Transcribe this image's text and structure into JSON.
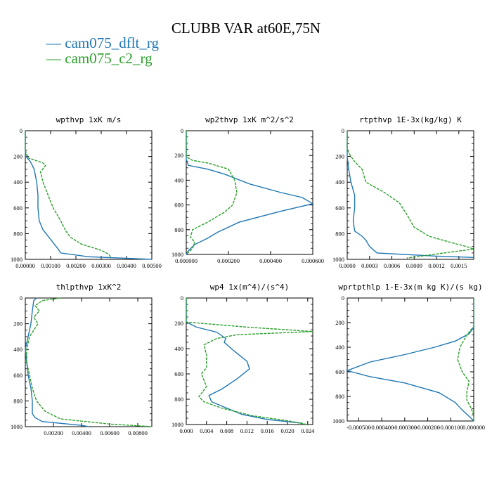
{
  "title": "CLUBB VAR at60E,75N",
  "legend": [
    {
      "label": "cam075_dflt_rg",
      "color": "#1f77b4",
      "dash": false
    },
    {
      "label": "cam075_c2_rg",
      "color": "#2ca02c",
      "dash": true
    }
  ],
  "chart_data": [
    {
      "type": "line",
      "title": "wpthvp  1xK m/s",
      "xlim": [
        0,
        0.005
      ],
      "ylim": [
        1000,
        0
      ],
      "xticks": [
        0,
        0.001,
        0.002,
        0.003,
        0.004,
        0.005
      ],
      "xticklabels": [
        "0.00000",
        "0.00100",
        "0.00200",
        "0.00300",
        "0.00400",
        "0.00500"
      ],
      "yticks": [
        0,
        200,
        400,
        600,
        800,
        1000
      ],
      "yticklabels": [
        "0",
        "200",
        "400",
        "600",
        "800",
        "1000"
      ],
      "series": [
        {
          "name": "cam075_dflt_rg",
          "points": [
            [
              0,
              0
            ],
            [
              0,
              150
            ],
            [
              2e-05,
              200
            ],
            [
              0.0002,
              240
            ],
            [
              0.00035,
              300
            ],
            [
              0.00045,
              400
            ],
            [
              0.0005,
              500
            ],
            [
              0.0005,
              600
            ],
            [
              0.00055,
              700
            ],
            [
              0.0007,
              770
            ],
            [
              0.0009,
              820
            ],
            [
              0.0011,
              870
            ],
            [
              0.0013,
              920
            ],
            [
              0.0014,
              950
            ],
            [
              0.0025,
              980
            ],
            [
              0.005,
              1000
            ]
          ]
        },
        {
          "name": "cam075_c2_rg",
          "points": [
            [
              0,
              0
            ],
            [
              0,
              150
            ],
            [
              0.0001,
              210
            ],
            [
              0.0007,
              250
            ],
            [
              0.0008,
              270
            ],
            [
              0.0006,
              320
            ],
            [
              0.0007,
              400
            ],
            [
              0.0009,
              500
            ],
            [
              0.0011,
              600
            ],
            [
              0.0014,
              700
            ],
            [
              0.0016,
              780
            ],
            [
              0.0018,
              830
            ],
            [
              0.0022,
              880
            ],
            [
              0.003,
              930
            ],
            [
              0.0033,
              960
            ],
            [
              0.0034,
              990
            ]
          ]
        }
      ]
    },
    {
      "type": "line",
      "title": "wp2thvp  1xK m^2/s^2",
      "xlim": [
        0,
        0.0006
      ],
      "ylim": [
        1000,
        0
      ],
      "xticks": [
        0,
        0.0002,
        0.0004,
        0.0006
      ],
      "xticklabels": [
        "0.000000",
        "0.000200",
        "0.000400",
        "0.000600"
      ],
      "yticks": [
        0,
        200,
        400,
        600,
        800,
        1000
      ],
      "yticklabels": [
        "0",
        "200",
        "400",
        "600",
        "800",
        "1000"
      ],
      "series": [
        {
          "name": "cam075_dflt_rg",
          "points": [
            [
              0,
              0
            ],
            [
              0,
              230
            ],
            [
              1e-05,
              280
            ],
            [
              0.0001,
              310
            ],
            [
              0.00018,
              350
            ],
            [
              0.0003,
              430
            ],
            [
              0.00045,
              500
            ],
            [
              0.00055,
              540
            ],
            [
              0.0006,
              590
            ],
            [
              0.00045,
              650
            ],
            [
              0.00025,
              740
            ],
            [
              0.00015,
              820
            ],
            [
              0.0001,
              870
            ],
            [
              4e-05,
              920
            ],
            [
              1e-05,
              970
            ],
            [
              0,
              1000
            ]
          ]
        },
        {
          "name": "cam075_c2_rg",
          "points": [
            [
              0,
              0
            ],
            [
              0,
              210
            ],
            [
              3e-05,
              240
            ],
            [
              0.0001,
              260
            ],
            [
              0.0002,
              310
            ],
            [
              0.00023,
              400
            ],
            [
              0.00024,
              500
            ],
            [
              0.00022,
              600
            ],
            [
              0.00018,
              660
            ],
            [
              0.0001,
              740
            ],
            [
              3e-05,
              800
            ],
            [
              2e-05,
              860
            ],
            [
              4e-05,
              900
            ],
            [
              3e-05,
              950
            ],
            [
              0,
              1000
            ]
          ]
        }
      ]
    },
    {
      "type": "line",
      "title": "rtpthvp  1E-3x(kg/kg) K",
      "xlim": [
        0,
        0.0017
      ],
      "ylim": [
        1000,
        0
      ],
      "xticks": [
        0,
        0.0003,
        0.0006,
        0.0009,
        0.0012,
        0.0015
      ],
      "xticklabels": [
        "0.0000",
        "0.0003",
        "0.0006",
        "0.0009",
        "0.0012",
        "0.0015"
      ],
      "yticks": [
        0,
        200,
        400,
        600,
        800,
        1000
      ],
      "yticklabels": [
        "0",
        "200",
        "400",
        "600",
        "800",
        "1000"
      ],
      "series": [
        {
          "name": "cam075_dflt_rg",
          "points": [
            [
              0,
              0
            ],
            [
              0,
              200
            ],
            [
              2e-05,
              300
            ],
            [
              5e-05,
              400
            ],
            [
              0.0001,
              500
            ],
            [
              0.0001,
              600
            ],
            [
              8e-05,
              700
            ],
            [
              0.0001,
              780
            ],
            [
              0.0002,
              820
            ],
            [
              0.00025,
              850
            ],
            [
              0.0003,
              900
            ],
            [
              0.0004,
              950
            ],
            [
              0.0012,
              975
            ],
            [
              0.0017,
              985
            ]
          ]
        },
        {
          "name": "cam075_c2_rg",
          "points": [
            [
              0,
              0
            ],
            [
              0,
              150
            ],
            [
              5e-05,
              200
            ],
            [
              0.0001,
              240
            ],
            [
              0.0002,
              300
            ],
            [
              0.00025,
              400
            ],
            [
              0.0005,
              480
            ],
            [
              0.0007,
              560
            ],
            [
              0.0008,
              650
            ],
            [
              0.0009,
              750
            ],
            [
              0.0011,
              820
            ],
            [
              0.0014,
              870
            ],
            [
              0.0016,
              900
            ],
            [
              0.0017,
              920
            ],
            [
              0.0013,
              950
            ],
            [
              0.0008,
              990
            ]
          ]
        }
      ]
    },
    {
      "type": "line",
      "title": "thlpthvp  1xK^2",
      "xlim": [
        0,
        0.009
      ],
      "ylim": [
        1000,
        0
      ],
      "xticks": [
        0.002,
        0.004,
        0.006,
        0.008
      ],
      "xticklabels": [
        "0.00200",
        "0.00400",
        "0.00600",
        "0.00800"
      ],
      "yticks": [
        0,
        200,
        400,
        600,
        800,
        1000
      ],
      "yticklabels": [
        "0",
        "200",
        "400",
        "600",
        "800",
        "1000"
      ],
      "series": [
        {
          "name": "cam075_dflt_rg",
          "points": [
            [
              0.0008,
              0
            ],
            [
              0.0006,
              20
            ],
            [
              0.0005,
              100
            ],
            [
              0.0004,
              200
            ],
            [
              0.0002,
              300
            ],
            [
              0,
              400
            ],
            [
              0.0001,
              500
            ],
            [
              0.0002,
              600
            ],
            [
              0.0004,
              700
            ],
            [
              0.0005,
              800
            ],
            [
              0.0005,
              900
            ],
            [
              0.0007,
              930
            ],
            [
              0.0012,
              960
            ],
            [
              0.004,
              990
            ],
            [
              0.0045,
              1000
            ]
          ]
        },
        {
          "name": "cam075_c2_rg",
          "points": [
            [
              0.0025,
              0
            ],
            [
              0.0012,
              20
            ],
            [
              0.0007,
              60
            ],
            [
              0.001,
              100
            ],
            [
              0.0006,
              150
            ],
            [
              0.0009,
              200
            ],
            [
              0.0006,
              250
            ],
            [
              0.0003,
              300
            ],
            [
              0.0001,
              400
            ],
            [
              0.0001,
              500
            ],
            [
              0.0003,
              600
            ],
            [
              0.0005,
              700
            ],
            [
              0.0008,
              800
            ],
            [
              0.0014,
              880
            ],
            [
              0.0025,
              940
            ],
            [
              0.006,
              980
            ],
            [
              0.009,
              1000
            ]
          ]
        }
      ]
    },
    {
      "type": "line",
      "title": "wp4  1x(m^4)/(s^4)",
      "xlim": [
        0,
        0.025
      ],
      "ylim": [
        1000,
        0
      ],
      "xticks": [
        0,
        0.004,
        0.008,
        0.012,
        0.016,
        0.02,
        0.024
      ],
      "xticklabels": [
        "0.000",
        "0.004",
        "0.008",
        "0.012",
        "0.016",
        "0.020",
        "0.024"
      ],
      "yticks": [
        0,
        200,
        400,
        600,
        800,
        1000
      ],
      "yticklabels": [
        "0",
        "200",
        "400",
        "600",
        "800",
        "1000"
      ],
      "series": [
        {
          "name": "cam075_dflt_rg",
          "points": [
            [
              0,
              0
            ],
            [
              0,
              190
            ],
            [
              0.002,
              230
            ],
            [
              0.006,
              270
            ],
            [
              0.0078,
              320
            ],
            [
              0.0075,
              350
            ],
            [
              0.0095,
              420
            ],
            [
              0.012,
              500
            ],
            [
              0.0125,
              560
            ],
            [
              0.01,
              640
            ],
            [
              0.007,
              720
            ],
            [
              0.0045,
              770
            ],
            [
              0.005,
              820
            ],
            [
              0.008,
              870
            ],
            [
              0.011,
              920
            ],
            [
              0.016,
              960
            ],
            [
              0.023,
              990
            ]
          ]
        },
        {
          "name": "cam075_c2_rg",
          "points": [
            [
              0,
              0
            ],
            [
              0,
              190
            ],
            [
              0.012,
              230
            ],
            [
              0.025,
              265
            ],
            [
              0.01,
              290
            ],
            [
              0.006,
              320
            ],
            [
              0.0035,
              370
            ],
            [
              0.004,
              450
            ],
            [
              0.004,
              550
            ],
            [
              0.003,
              600
            ],
            [
              0.004,
              700
            ],
            [
              0.0025,
              780
            ],
            [
              0.0035,
              820
            ],
            [
              0.007,
              870
            ],
            [
              0.013,
              930
            ],
            [
              0.02,
              970
            ],
            [
              0.024,
              1000
            ]
          ]
        }
      ]
    },
    {
      "type": "line",
      "title": "wprtpthlp  1-E-3x(m kg K)/(s kg)",
      "xlim": [
        -0.00055,
        0
      ],
      "ylim": [
        1000,
        0
      ],
      "xticks": [
        -0.0005,
        -0.0004,
        -0.0003,
        -0.0002,
        -0.0001,
        0
      ],
      "xticklabels": [
        "-0.000500",
        "-0.000400",
        "-0.000300",
        "-0.000200",
        "-0.000100",
        "0.000000"
      ],
      "yticks": [
        0,
        200,
        400,
        600,
        800,
        1000
      ],
      "yticklabels": [
        "0",
        "200",
        "400",
        "600",
        "800",
        "1000"
      ],
      "series": [
        {
          "name": "cam075_dflt_rg",
          "points": [
            [
              0,
              0
            ],
            [
              0,
              240
            ],
            [
              -2e-05,
              290
            ],
            [
              -8e-05,
              350
            ],
            [
              -0.00017,
              400
            ],
            [
              -0.0003,
              460
            ],
            [
              -0.00045,
              520
            ],
            [
              -0.00055,
              590
            ],
            [
              -0.00045,
              640
            ],
            [
              -0.0003,
              690
            ],
            [
              -0.00015,
              770
            ],
            [
              -8e-05,
              850
            ],
            [
              -5e-05,
              910
            ],
            [
              -1e-05,
              980
            ],
            [
              0,
              1000
            ]
          ]
        },
        {
          "name": "cam075_c2_rg",
          "points": [
            [
              0,
              0
            ],
            [
              0,
              230
            ],
            [
              -3e-05,
              300
            ],
            [
              -6e-05,
              400
            ],
            [
              -7e-05,
              500
            ],
            [
              -5e-05,
              600
            ],
            [
              -2e-05,
              680
            ],
            [
              -3e-05,
              760
            ],
            [
              -3e-05,
              830
            ],
            [
              -1e-05,
              900
            ],
            [
              0,
              960
            ],
            [
              0,
              1000
            ]
          ]
        }
      ]
    }
  ]
}
